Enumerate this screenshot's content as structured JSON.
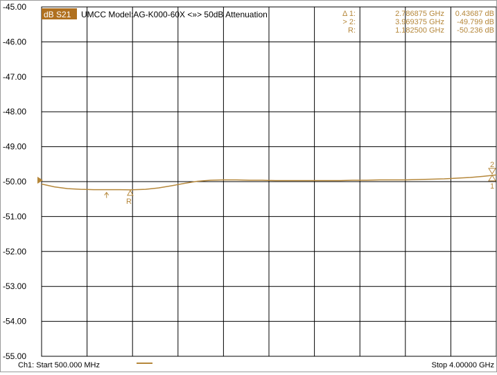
{
  "chart_data": {
    "type": "line",
    "trace_id": "dB S21",
    "title": "UMCC  Model:AG-K000-60X <»> 50dB Attenuation",
    "x": [
      500,
      600,
      700,
      800,
      900,
      1000,
      1100,
      1182.5,
      1300,
      1400,
      1500,
      1600,
      1700,
      1800,
      1900,
      2000,
      2100,
      2200,
      2300,
      2400,
      2500,
      2600,
      2700,
      2800,
      2900,
      3000,
      3100,
      3200,
      3300,
      3400,
      3500,
      3600,
      3700,
      3800,
      3900,
      4000
    ],
    "y": [
      -50.07,
      -50.15,
      -50.2,
      -50.22,
      -50.23,
      -50.23,
      -50.23,
      -50.236,
      -50.22,
      -50.18,
      -50.12,
      -50.05,
      -49.99,
      -49.96,
      -49.95,
      -49.95,
      -49.96,
      -49.96,
      -49.97,
      -49.97,
      -49.97,
      -49.97,
      -49.97,
      -49.97,
      -49.96,
      -49.96,
      -49.95,
      -49.95,
      -49.95,
      -49.94,
      -49.93,
      -49.92,
      -49.9,
      -49.88,
      -49.85,
      -49.81
    ],
    "xlim": [
      500,
      4000
    ],
    "ylim": [
      -55,
      -45
    ],
    "y_ticks": [
      "-45.00",
      "-46.00",
      "-47.00",
      "-48.00",
      "-49.00",
      "-50.00",
      "-51.00",
      "-52.00",
      "-53.00",
      "-54.00",
      "-55.00"
    ],
    "x_divisions": 10,
    "grid": true,
    "trace_color": "#b5873a",
    "markers": [
      {
        "label": "Δ 1:",
        "freq": "2.786875 GHz",
        "value": "0.43687 dB",
        "x": 3969.375,
        "y": -49.799,
        "tag": "1"
      },
      {
        "label": "> 2:",
        "freq": "3.969375 GHz",
        "value": "-49.799 dB",
        "x": 3969.375,
        "y": -49.799,
        "tag": "2"
      },
      {
        "label": "R:",
        "freq": "1.182500 GHz",
        "value": "-50.236 dB",
        "x": 1182.5,
        "y": -50.236,
        "tag": "R"
      }
    ],
    "start_label": "Ch1: Start  500.000 MHz",
    "stop_label": "Stop  4.00000 GHz"
  }
}
